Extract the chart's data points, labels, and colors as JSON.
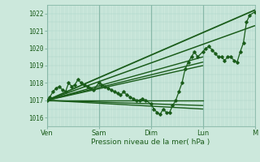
{
  "title": "",
  "xlabel": "Pression niveau de la mer( hPa )",
  "ylabel": "",
  "background_color": "#cce8dc",
  "plot_bg_color": "#cce8dc",
  "grid_color_fine": "#aad4c4",
  "grid_color_day": "#88b8a8",
  "text_color": "#1a5c1a",
  "line_color": "#1a5c1a",
  "ylim": [
    1015.5,
    1022.5
  ],
  "xlim": [
    0,
    100
  ],
  "yticks": [
    1016,
    1017,
    1018,
    1019,
    1020,
    1021,
    1022
  ],
  "xtick_labels": [
    "Ven",
    "Sam",
    "Dim",
    "Lun",
    "M"
  ],
  "xtick_positions": [
    0,
    25,
    50,
    75,
    100
  ],
  "day_positions": [
    0,
    25,
    50,
    75,
    100
  ],
  "straight_lines": [
    {
      "x0": 0,
      "y0": 1017.0,
      "x1": 100,
      "y1": 1022.2,
      "lw": 1.3
    },
    {
      "x0": 0,
      "y0": 1017.0,
      "x1": 100,
      "y1": 1021.3,
      "lw": 1.1
    },
    {
      "x0": 0,
      "y0": 1017.0,
      "x1": 75,
      "y1": 1019.5,
      "lw": 1.0
    },
    {
      "x0": 0,
      "y0": 1017.0,
      "x1": 75,
      "y1": 1019.2,
      "lw": 1.0
    },
    {
      "x0": 0,
      "y0": 1017.0,
      "x1": 75,
      "y1": 1019.0,
      "lw": 1.0
    },
    {
      "x0": 0,
      "y0": 1017.0,
      "x1": 75,
      "y1": 1017.0,
      "lw": 1.0
    },
    {
      "x0": 0,
      "y0": 1017.0,
      "x1": 75,
      "y1": 1016.7,
      "lw": 1.0
    },
    {
      "x0": 0,
      "y0": 1017.0,
      "x1": 75,
      "y1": 1016.5,
      "lw": 1.0
    }
  ],
  "data_x": [
    0.0,
    1.5,
    3.0,
    4.5,
    6.0,
    7.5,
    9.0,
    10.5,
    12.0,
    13.5,
    15.0,
    16.5,
    18.0,
    19.5,
    21.0,
    22.5,
    25.0,
    26.5,
    28.0,
    29.5,
    31.0,
    32.5,
    34.0,
    35.5,
    37.0,
    38.5,
    40.0,
    41.5,
    43.0,
    44.5,
    46.0,
    47.5,
    50.0,
    51.5,
    53.0,
    54.5,
    56.0,
    57.5,
    59.0,
    60.5,
    62.0,
    63.5,
    65.0,
    66.5,
    68.0,
    69.5,
    71.0,
    72.5,
    75.0,
    76.5,
    78.0,
    79.5,
    81.0,
    82.5,
    84.0,
    85.5,
    87.0,
    88.5,
    90.0,
    91.5,
    93.0,
    94.5,
    96.0,
    97.5,
    100.0
  ],
  "data_y": [
    1017.0,
    1017.2,
    1017.5,
    1017.7,
    1017.8,
    1017.6,
    1017.5,
    1018.0,
    1017.8,
    1017.9,
    1018.2,
    1018.0,
    1017.9,
    1017.8,
    1017.7,
    1017.6,
    1018.0,
    1017.9,
    1017.8,
    1017.7,
    1017.6,
    1017.5,
    1017.4,
    1017.3,
    1017.5,
    1017.3,
    1017.2,
    1017.1,
    1017.0,
    1017.0,
    1017.1,
    1017.0,
    1016.8,
    1016.5,
    1016.3,
    1016.2,
    1016.5,
    1016.3,
    1016.3,
    1016.7,
    1017.0,
    1017.5,
    1018.0,
    1018.8,
    1019.2,
    1019.5,
    1019.8,
    1019.5,
    1019.8,
    1020.0,
    1020.1,
    1019.9,
    1019.7,
    1019.5,
    1019.5,
    1019.3,
    1019.5,
    1019.5,
    1019.3,
    1019.2,
    1019.8,
    1020.3,
    1021.5,
    1021.9,
    1022.1
  ]
}
